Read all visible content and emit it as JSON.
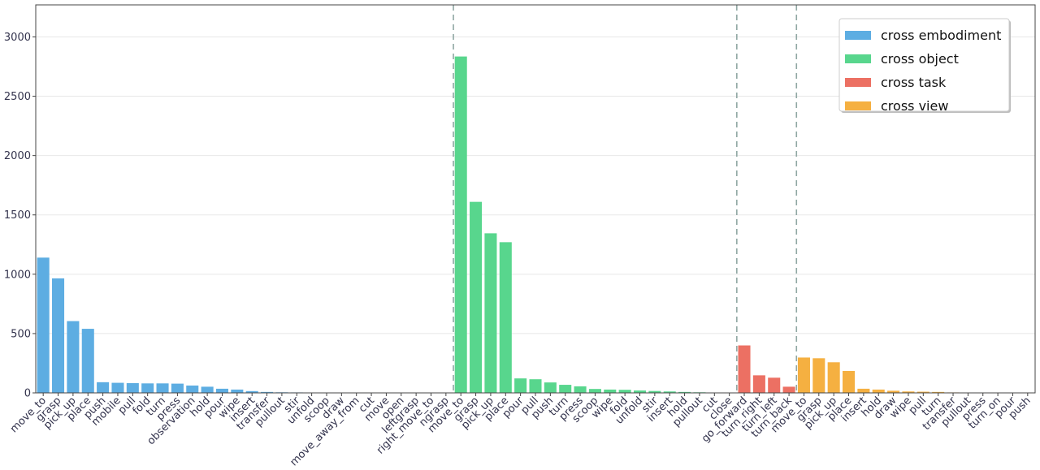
{
  "chart_data": {
    "type": "bar",
    "ylim": [
      0,
      3270
    ],
    "yticks": [
      0,
      500,
      1000,
      1500,
      2000,
      2500,
      3000
    ],
    "grid": "horizontal",
    "legend_position": "top-right",
    "groups": [
      {
        "name": "cross embodiment",
        "color": "#5dade2",
        "categories": [
          "move_to",
          "grasp",
          "pick_up",
          "place",
          "push",
          "mobile",
          "pull",
          "fold",
          "turn",
          "press",
          "observation",
          "hold",
          "pour",
          "wipe",
          "insert",
          "transfer",
          "pullout",
          "stir",
          "unfold",
          "scoop",
          "draw",
          "move_away_from",
          "cut",
          "move",
          "open",
          "leftgrasp",
          "right_move_to",
          "ngrasp"
        ],
        "values": [
          1140,
          965,
          605,
          540,
          90,
          85,
          82,
          80,
          80,
          78,
          62,
          52,
          35,
          28,
          15,
          8,
          5,
          4,
          3,
          2,
          2,
          2,
          2,
          2,
          1,
          1,
          1,
          1
        ]
      },
      {
        "name": "cross object",
        "color": "#58d68d",
        "categories": [
          "move_to",
          "grasp",
          "pick_up",
          "place",
          "pour",
          "pull",
          "push",
          "turn",
          "press",
          "scoop",
          "wipe",
          "fold",
          "unfold",
          "stir",
          "insert",
          "hold",
          "pullout",
          "cut",
          "close"
        ],
        "values": [
          2835,
          1610,
          1345,
          1270,
          122,
          115,
          88,
          68,
          55,
          33,
          28,
          26,
          20,
          16,
          12,
          8,
          5,
          3,
          2
        ]
      },
      {
        "name": "cross task",
        "color": "#ec7063",
        "categories": [
          "go_forward",
          "turn_right",
          "turn_left",
          "turn_back"
        ],
        "values": [
          400,
          148,
          128,
          52
        ]
      },
      {
        "name": "cross view",
        "color": "#f5b041",
        "categories": [
          "move_to",
          "grasp",
          "pick_up",
          "place",
          "insert",
          "hold",
          "draw",
          "wipe",
          "pull",
          "turn",
          "transfer",
          "pullout",
          "press",
          "turn_on",
          "pour",
          "push"
        ],
        "values": [
          298,
          292,
          258,
          185,
          35,
          28,
          18,
          12,
          10,
          8,
          4,
          3,
          2,
          2,
          2,
          1
        ]
      }
    ]
  }
}
